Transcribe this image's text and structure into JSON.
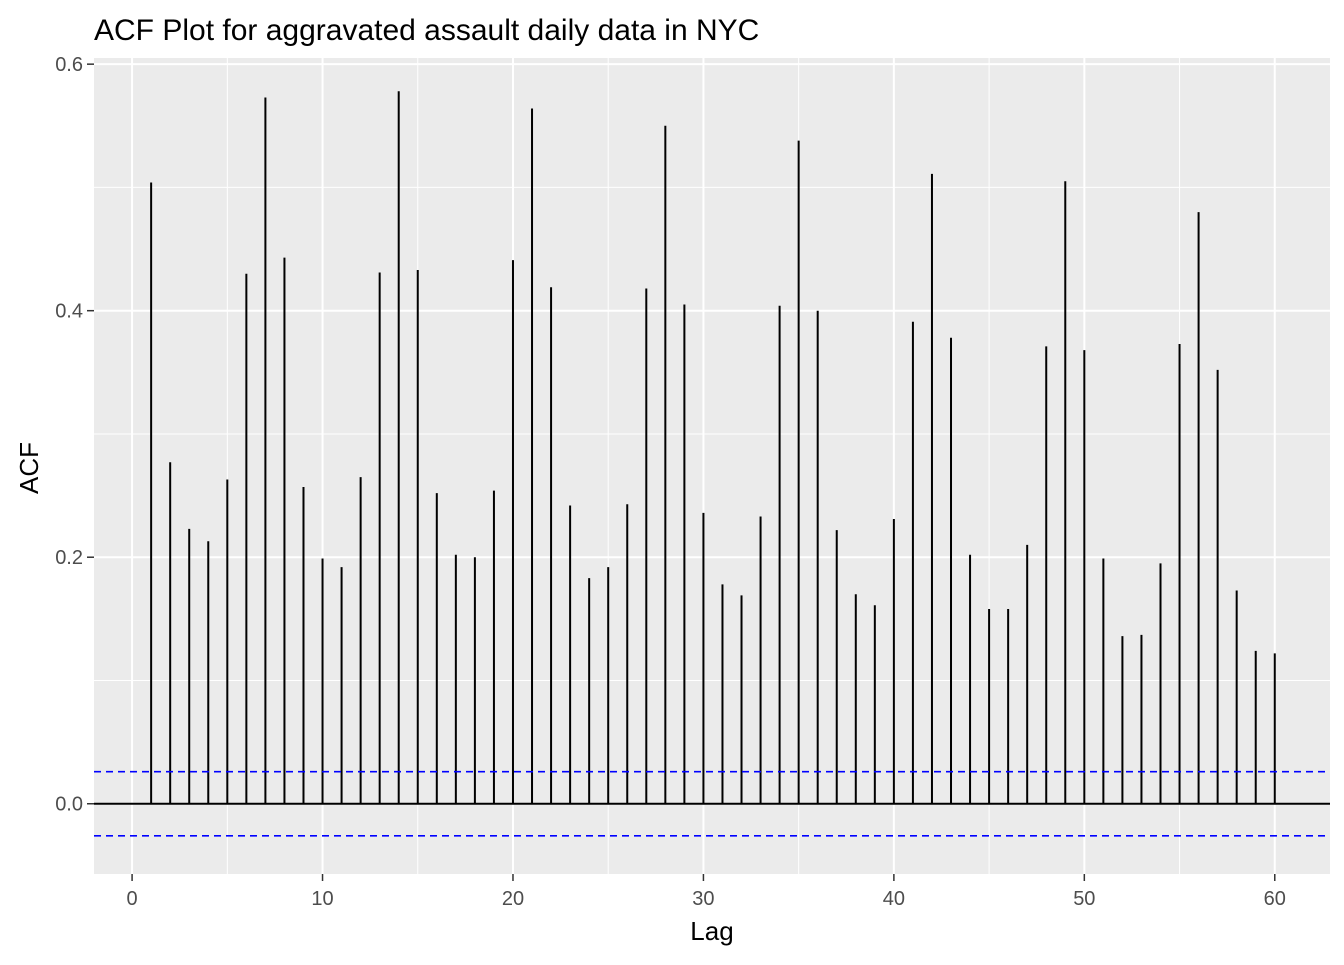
{
  "chart_data": {
    "type": "bar",
    "title": "ACF Plot for aggravated assault daily data in NYC",
    "xlabel": "Lag",
    "ylabel": "ACF",
    "xlim": [
      -2,
      62.9
    ],
    "ylim": [
      -0.057,
      0.605
    ],
    "x_ticks": [
      0,
      10,
      20,
      30,
      40,
      50,
      60
    ],
    "y_ticks": [
      0.0,
      0.2,
      0.4,
      0.6
    ],
    "y_tick_labels": [
      "0.0",
      "0.2",
      "0.4",
      "0.6"
    ],
    "grid": true,
    "confidence_bounds": [
      0.026,
      -0.026
    ],
    "colors": {
      "panel_background": "#EBEBEB",
      "grid": "#FFFFFF",
      "bars": "#000000",
      "bounds": "#0000FF",
      "axis_text": "#4D4D4D"
    },
    "x": [
      1,
      2,
      3,
      4,
      5,
      6,
      7,
      8,
      9,
      10,
      11,
      12,
      13,
      14,
      15,
      16,
      17,
      18,
      19,
      20,
      21,
      22,
      23,
      24,
      25,
      26,
      27,
      28,
      29,
      30,
      31,
      32,
      33,
      34,
      35,
      36,
      37,
      38,
      39,
      40,
      41,
      42,
      43,
      44,
      45,
      46,
      47,
      48,
      49,
      50,
      51,
      52,
      53,
      54,
      55,
      56,
      57,
      58,
      59,
      60
    ],
    "values": [
      0.504,
      0.277,
      0.223,
      0.213,
      0.263,
      0.43,
      0.573,
      0.443,
      0.257,
      0.199,
      0.192,
      0.265,
      0.431,
      0.578,
      0.433,
      0.252,
      0.202,
      0.2,
      0.254,
      0.441,
      0.564,
      0.419,
      0.242,
      0.183,
      0.192,
      0.243,
      0.418,
      0.55,
      0.405,
      0.236,
      0.178,
      0.169,
      0.233,
      0.404,
      0.538,
      0.4,
      0.222,
      0.17,
      0.161,
      0.231,
      0.391,
      0.511,
      0.378,
      0.202,
      0.158,
      0.158,
      0.21,
      0.371,
      0.505,
      0.368,
      0.199,
      0.136,
      0.137,
      0.195,
      0.373,
      0.48,
      0.352,
      0.173,
      0.124,
      0.122
    ]
  }
}
